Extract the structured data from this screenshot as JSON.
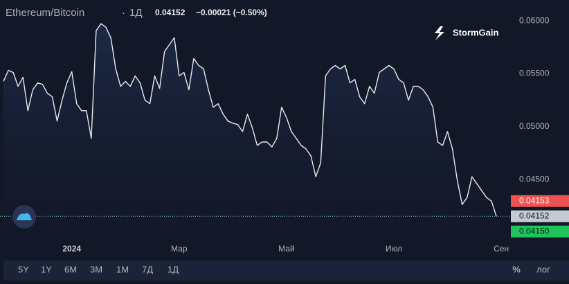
{
  "chart_data": {
    "type": "line",
    "title": "Ethereum/Bitcoin",
    "interval": "1Д",
    "last": "0.04152",
    "change": "−0.00021 (−0.50%)",
    "logo": "StormGain",
    "categories": [
      null,
      null,
      null,
      null,
      null,
      null,
      null,
      null,
      null,
      null,
      null,
      null,
      null,
      null,
      "2024",
      null,
      null,
      null,
      null,
      null,
      null,
      null,
      null,
      null,
      null,
      null,
      null,
      null,
      null,
      null,
      null,
      null,
      null,
      null,
      null,
      null,
      "Мар",
      null,
      null,
      null,
      null,
      null,
      null,
      null,
      null,
      null,
      null,
      null,
      null,
      null,
      null,
      null,
      null,
      null,
      null,
      null,
      null,
      null,
      "Май",
      null,
      null,
      null,
      null,
      null,
      null,
      null,
      null,
      null,
      null,
      null,
      null,
      null,
      null,
      null,
      null,
      null,
      null,
      null,
      null,
      null,
      "Июл",
      null,
      null,
      null,
      null,
      null,
      null,
      null,
      null,
      null,
      null,
      null,
      null,
      null,
      null,
      null,
      null,
      null,
      null,
      null,
      null,
      null,
      "Сен"
    ],
    "series": [
      {
        "name": "ETH/BTC",
        "color": "#e8eaf0",
        "values": [
          0.05428,
          0.05533,
          0.05513,
          0.05382,
          0.05467,
          0.05151,
          0.05349,
          0.05414,
          0.05401,
          0.05316,
          0.05283,
          0.05053,
          0.0525,
          0.05414,
          0.0552,
          0.05217,
          0.05151,
          0.05151,
          0.04888,
          0.05908,
          0.05974,
          0.05941,
          0.05842,
          0.05546,
          0.05382,
          0.05428,
          0.05382,
          0.0548,
          0.05414,
          0.0525,
          0.05217,
          0.0548,
          0.05362,
          0.05711,
          0.05776,
          0.05842,
          0.0548,
          0.05513,
          0.05349,
          0.05645,
          0.05579,
          0.05546,
          0.05349,
          0.05184,
          0.05217,
          0.05118,
          0.05053,
          0.05033,
          0.0502,
          0.04954,
          0.05118,
          0.04987,
          0.04822,
          0.04855,
          0.04855,
          0.04809,
          0.04888,
          0.05184,
          0.05086,
          0.04954,
          0.04888,
          0.04822,
          0.04789,
          0.04724,
          0.04526,
          0.04658,
          0.0548,
          0.05546,
          0.05579,
          0.05546,
          0.05579,
          0.05414,
          0.05447,
          0.05283,
          0.05217,
          0.05382,
          0.05316,
          0.05513,
          0.05546,
          0.05579,
          0.05546,
          0.05447,
          0.05414,
          0.0525,
          0.05382,
          0.05382,
          0.05349,
          0.05283,
          0.05184,
          0.04855,
          0.04822,
          0.04954,
          0.04789,
          0.04493,
          0.04263,
          0.04329,
          0.04526,
          0.0446,
          0.04395,
          0.04329,
          0.04296,
          0.04152,
          null
        ]
      }
    ],
    "ylim": [
      0.0397,
      0.061
    ],
    "yticks": [
      {
        "value": 0.045,
        "label": "0.04500"
      },
      {
        "value": 0.05,
        "label": "0.05000"
      },
      {
        "value": 0.055,
        "label": "0.05500"
      },
      {
        "value": 0.06,
        "label": "0.06000"
      }
    ],
    "grid": false,
    "price_labels": [
      {
        "value": 0.04153,
        "label": "0.04153",
        "color": "#f05252"
      },
      {
        "value": 0.04152,
        "label": "0.04152",
        "color": "#c5c9d3"
      },
      {
        "value": 0.0415,
        "label": "0.04150",
        "color": "#1fc45a"
      }
    ]
  },
  "toolbar": {
    "ranges": [
      "5Y",
      "1Y",
      "6M",
      "3M",
      "1M",
      "7Д",
      "1Д"
    ],
    "percent": "%",
    "log": "лог"
  }
}
